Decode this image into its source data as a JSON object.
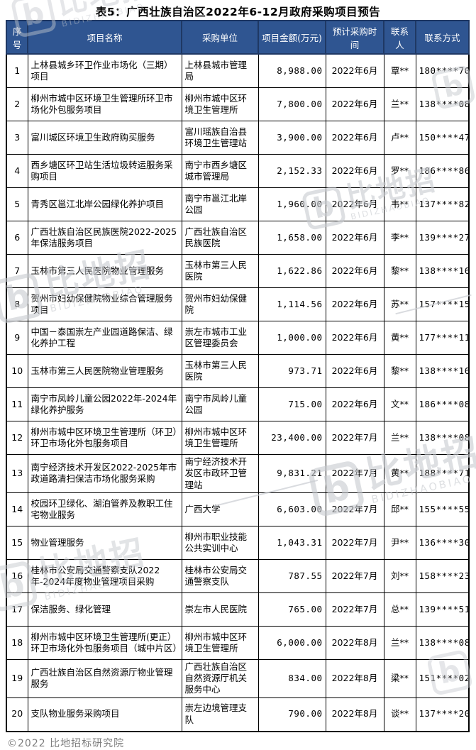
{
  "title": "表5：广西壮族自治区2022年6-12月政府采购项目预告",
  "footer": {
    "copyright": "©2022 比地招标研究院"
  },
  "watermark": {
    "logo_letter": "b",
    "cn": "比地招",
    "en": "BIDIZHAOBIAO"
  },
  "colors": {
    "header_bg": "#2F5591",
    "header_text": "#FFFFFF",
    "header_border": "#1F3864",
    "grid_border": "#000000",
    "footer_text": "#7D7D7D",
    "watermark": "#C7CACF"
  },
  "table": {
    "columns": [
      "序号",
      "项目名称",
      "采购单位",
      "项目金额(万元)",
      "预计采购时间",
      "联系人",
      "联系方式"
    ],
    "rows": [
      {
        "no": "1",
        "project": "上林县城乡环卫作业市场化（三期）项目",
        "unit": "上林县城市管理局",
        "amount": "8,988.00",
        "time": "2022年6月",
        "contact": "覃**",
        "phone": "180****70"
      },
      {
        "no": "2",
        "project": "柳州市城中区环境卫生管理所环卫市场化外包服务项目",
        "unit": "柳州市城中区环境卫生管理所",
        "amount": "7,800.00",
        "time": "2022年6月",
        "contact": "兰**",
        "phone": "138****08"
      },
      {
        "no": "3",
        "project": "富川城区环境卫生政府购买服务",
        "unit": "富川瑶族自治县环境卫生管理站",
        "amount": "3,900.00",
        "time": "2022年6月",
        "contact": "卢**",
        "phone": "150****47"
      },
      {
        "no": "4",
        "project": "西乡塘区环卫站生活垃圾转运服务采购项目",
        "unit": "南宁市西乡塘区城市管理局",
        "amount": "2,152.33",
        "time": "2022年6月",
        "contact": "罗**",
        "phone": "186****86"
      },
      {
        "no": "5",
        "project": "青秀区邕江北岸公园绿化养护项目",
        "unit": "南宁市邕江北岸公园",
        "amount": "1,960.00",
        "time": "2022年6月",
        "contact": "韦**",
        "phone": "137****82"
      },
      {
        "no": "6",
        "project": "广西壮族自治区民族医院2022-2025年保洁服务项目",
        "unit": "广西壮族自治区民族医院",
        "amount": "1,658.00",
        "time": "2022年6月",
        "contact": "李**",
        "phone": "139****27"
      },
      {
        "no": "7",
        "project": "玉林市第三人民医院物业管理服务",
        "unit": "玉林市第三人民医院",
        "amount": "1,622.86",
        "time": "2022年6月",
        "contact": "黎**",
        "phone": "138****16"
      },
      {
        "no": "8",
        "project": "贺州市妇幼保健院物业综合管理服务项目",
        "unit": "贺州市妇幼保健院",
        "amount": "1,114.56",
        "time": "2022年6月",
        "contact": "苏**",
        "phone": "157****15"
      },
      {
        "no": "9",
        "project": "中国－泰国崇左产业园道路保洁、绿化养护工程",
        "unit": "崇左市城市工业区管理委员会",
        "amount": "1,000.00",
        "time": "2022年6月",
        "contact": "黄**",
        "phone": "177****11"
      },
      {
        "no": "10",
        "project": "玉林市第三人民医院物业管理服务",
        "unit": "玉林市第三人民医院",
        "amount": "973.71",
        "time": "2022年6月",
        "contact": "黎**",
        "phone": "138****16"
      },
      {
        "no": "11",
        "project": "南宁市凤岭儿童公园2022年-2024年绿化养护服务",
        "unit": "南宁市凤岭儿童公园",
        "amount": "715.00",
        "time": "2022年6月",
        "contact": "文**",
        "phone": "186****08"
      },
      {
        "no": "12",
        "project": "柳州市城中区环境卫生管理所（环卫）环卫市场化外包服务项目",
        "unit": "柳州市城中区环境卫生管理所",
        "amount": "23,400.00",
        "time": "2022年7月",
        "contact": "兰**",
        "phone": "138****08"
      },
      {
        "no": "13",
        "project": "南宁经济技术开发区2022-2025年市政道路清扫保洁市场化服务采购",
        "unit": "南宁经济技术开发区市政环卫管理站",
        "amount": "9,831.21",
        "time": "2022年7月",
        "contact": "黄**",
        "phone": "188****71"
      },
      {
        "no": "14",
        "project": "校园环卫绿化、湖泊管养及教职工住宅物业服务",
        "unit": "广西大学",
        "amount": "6,603.00",
        "time": "2022年7月",
        "contact": "邱**",
        "phone": "155****55"
      },
      {
        "no": "15",
        "project": "物业管理服务",
        "unit": "柳州市职业技能公共实训中心",
        "amount": "1,043.31",
        "time": "2022年7月",
        "contact": "尹**",
        "phone": "136****30"
      },
      {
        "no": "16",
        "project": "桂林市公安局交通警察支队2022年-2024年度物业管理项目采购",
        "unit": "桂林市公安局交通警察支队",
        "amount": "787.55",
        "time": "2022年7月",
        "contact": "刘**",
        "phone": "158****23"
      },
      {
        "no": "17",
        "project": "保洁服务、绿化管理",
        "unit": "崇左市人民医院",
        "amount": "765.00",
        "time": "2022年7月",
        "contact": "总**",
        "phone": "139****51"
      },
      {
        "no": "18",
        "project": "柳州市城中区环境卫生管理所(更正）环卫市场化外包服务项目（城中片区）",
        "unit": "柳州市城中区环境卫生管理所",
        "amount": "6,000.00",
        "time": "2022年8月",
        "contact": "兰**",
        "phone": "138****08"
      },
      {
        "no": "19",
        "project": "广西壮族自治区自然资源厅物业管理服务",
        "unit": "广西壮族自治区自然资源厅机关服务中心",
        "amount": "834.00",
        "time": "2022年8月",
        "contact": "梁**",
        "phone": "151****02"
      },
      {
        "no": "20",
        "project": "支队物业服务采购项目",
        "unit": "崇左边境管理支队",
        "amount": "790.00",
        "time": "2022年8月",
        "contact": "谈**",
        "phone": "137****20"
      }
    ]
  }
}
